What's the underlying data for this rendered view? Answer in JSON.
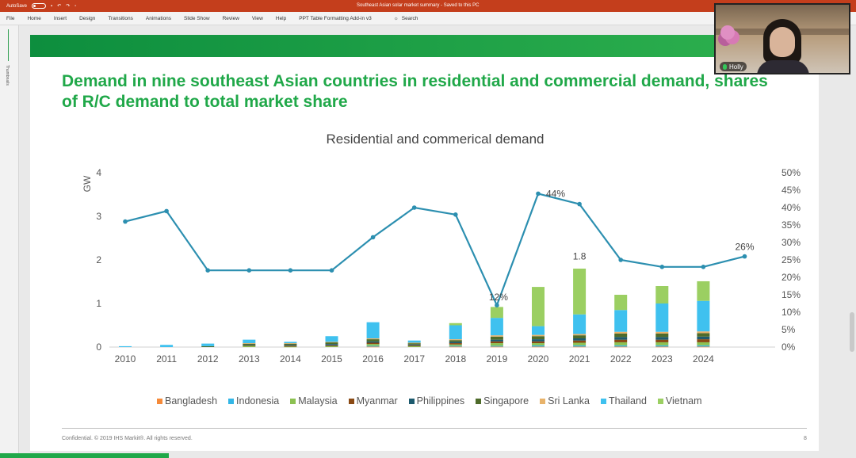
{
  "titlebar": {
    "autosave": "AutoSave",
    "doc_title": "Southeast Asian solar market summary  -  Saved to this PC"
  },
  "ribbon": {
    "tabs": [
      "File",
      "Home",
      "Insert",
      "Design",
      "Transitions",
      "Animations",
      "Slide Show",
      "Review",
      "View",
      "Help",
      "PPT Table Formatting Add-in v3"
    ],
    "search_label": "Search"
  },
  "thumbnails": {
    "label": "Thumbnails"
  },
  "slide": {
    "title": "Demand in nine southeast Asian countries in residential and commercial demand, shares of R/C demand to total market share",
    "footer": "Confidential. © 2019 IHS Markit®. All rights reserved.",
    "page_number": "8"
  },
  "video": {
    "name": "Holly"
  },
  "colors": {
    "Bangladesh": "#f58a3a",
    "Indonesia": "#33b6e6",
    "Malaysia": "#8cc152",
    "Myanmar": "#8a4a14",
    "Philippines": "#1d5a6e",
    "Singapore": "#4e6b2a",
    "Sri Lanka": "#e8b36b",
    "Thailand": "#3fc1ef",
    "Vietnam": "#9bcf62",
    "line": "#2c8fb0"
  },
  "chart_data": {
    "type": "bar",
    "title": "Residential and commerical demand",
    "ylabel": "GW",
    "ylim": [
      0,
      4
    ],
    "y2lim": [
      0,
      0.5
    ],
    "yticks": [
      "0",
      "1",
      "2",
      "3",
      "4"
    ],
    "y2ticks": [
      "0%",
      "5%",
      "10%",
      "15%",
      "20%",
      "25%",
      "30%",
      "35%",
      "40%",
      "45%",
      "50%"
    ],
    "categories": [
      "2010",
      "2011",
      "2012",
      "2013",
      "2014",
      "2015",
      "2016",
      "2017",
      "2018",
      "2019",
      "2020",
      "2021",
      "2022",
      "2023",
      "2024"
    ],
    "series": [
      {
        "name": "Bangladesh",
        "values": [
          0,
          0,
          0,
          0,
          0,
          0,
          0.01,
          0,
          0.01,
          0.01,
          0.01,
          0.01,
          0.01,
          0.01,
          0.01
        ]
      },
      {
        "name": "Indonesia",
        "values": [
          0,
          0,
          0,
          0,
          0,
          0,
          0.02,
          0,
          0.02,
          0.02,
          0.03,
          0.03,
          0.03,
          0.03,
          0.03
        ]
      },
      {
        "name": "Malaysia",
        "values": [
          0,
          0,
          0,
          0.03,
          0.01,
          0.02,
          0.04,
          0.02,
          0.03,
          0.06,
          0.05,
          0.06,
          0.07,
          0.07,
          0.07
        ]
      },
      {
        "name": "Myanmar",
        "values": [
          0,
          0,
          0,
          0.01,
          0.02,
          0.02,
          0.03,
          0.02,
          0.03,
          0.04,
          0.04,
          0.05,
          0.06,
          0.06,
          0.07
        ]
      },
      {
        "name": "Philippines",
        "values": [
          0,
          0,
          0,
          0.01,
          0.02,
          0.03,
          0.03,
          0.02,
          0.03,
          0.04,
          0.05,
          0.05,
          0.06,
          0.06,
          0.06
        ]
      },
      {
        "name": "Singapore",
        "values": [
          0,
          0,
          0.02,
          0.03,
          0.03,
          0.04,
          0.05,
          0.03,
          0.04,
          0.07,
          0.07,
          0.07,
          0.08,
          0.08,
          0.08
        ]
      },
      {
        "name": "Sri Lanka",
        "values": [
          0,
          0,
          0,
          0.01,
          0.01,
          0.01,
          0.02,
          0.01,
          0.02,
          0.03,
          0.03,
          0.03,
          0.04,
          0.04,
          0.04
        ]
      },
      {
        "name": "Thailand",
        "values": [
          0.02,
          0.05,
          0.06,
          0.08,
          0.03,
          0.13,
          0.37,
          0.05,
          0.32,
          0.4,
          0.2,
          0.45,
          0.5,
          0.65,
          0.7
        ]
      },
      {
        "name": "Vietnam",
        "values": [
          0,
          0,
          0,
          0,
          0,
          0,
          0,
          0,
          0.05,
          0.25,
          0.9,
          1.05,
          0.35,
          0.4,
          0.45
        ]
      }
    ],
    "share_line": {
      "values": [
        0.36,
        0.39,
        0.22,
        0.22,
        0.22,
        0.22,
        0.315,
        0.4,
        0.38,
        0.12,
        0.44,
        0.41,
        0.25,
        0.23,
        0.23,
        0.26
      ],
      "x_positions": [
        "2010",
        "2011",
        "2012",
        "2013",
        "2014",
        "2015",
        "2016",
        "2017",
        "2018",
        "2019",
        "2020",
        "2021",
        "2022",
        "2023",
        "2024",
        "2025"
      ]
    },
    "annotations": [
      {
        "text": "12%",
        "category": "2019",
        "value": 0.12,
        "axis": "y2"
      },
      {
        "text": "44%",
        "category": "2020",
        "value": 0.44,
        "axis": "y2"
      },
      {
        "text": "1.8",
        "category": "2021",
        "value": 1.86,
        "axis": "y"
      },
      {
        "text": "26%",
        "category": "2025",
        "value": 0.26,
        "axis": "y2"
      }
    ],
    "legend_position": "bottom",
    "grid": false
  }
}
